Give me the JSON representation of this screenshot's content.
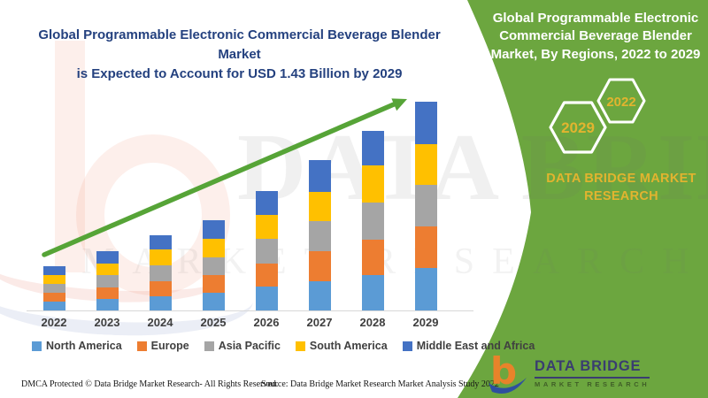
{
  "header": {
    "title_line1": "Global Programmable Electronic Commercial Beverage Blender Market",
    "title_line2": "is Expected to Account for USD 1.43 Billion by 2029"
  },
  "side_panel": {
    "title": "Global Programmable Electronic Commercial Beverage Blender Market, By Regions, 2022 to 2029",
    "hexagon_labels": [
      "2029",
      "2022"
    ],
    "brand_text": "DATA BRIDGE MARKET RESEARCH"
  },
  "logo": {
    "title": "DATA BRIDGE",
    "subtitle": "MARKET RESEARCH"
  },
  "footer": {
    "dmca": "DMCA Protected © Data Bridge Market Research- All Rights Reserved.",
    "source": "Source: Data Bridge Market Research Market Analysis Study 2022"
  },
  "colors": {
    "panel_green": "#6CA63F",
    "arrow_green": "#56A437",
    "gold": "#E2B42F",
    "title_blue": "#24417F",
    "logo_navy": "#3A3D70",
    "logo_orange": "#E8832A",
    "logo_blue": "#2E4F9F"
  },
  "chart_data": {
    "type": "bar",
    "stacked": true,
    "title": "Global Programmable Electronic Commercial Beverage Blender Market, By Regions, 2022 to 2029",
    "xlabel": "",
    "ylabel": "",
    "value_axis": "none shown; values are estimated bar-segment heights in screen pixels (relative units)",
    "annotation_total_2029_usd_billion": 1.43,
    "grid": false,
    "legend_position": "bottom",
    "trend_arrow": true,
    "categories": [
      "2022",
      "2023",
      "2024",
      "2025",
      "2026",
      "2027",
      "2028",
      "2029"
    ],
    "series": [
      {
        "name": "North America",
        "color": "#5B9BD5",
        "values": [
          10,
          13,
          16,
          20,
          27,
          33,
          40,
          48
        ]
      },
      {
        "name": "Europe",
        "color": "#ED7D31",
        "values": [
          10,
          13,
          17,
          20,
          26,
          34,
          40,
          47
        ]
      },
      {
        "name": "Asia Pacific",
        "color": "#A5A5A5",
        "values": [
          10,
          14,
          18,
          20,
          28,
          34,
          42,
          47
        ]
      },
      {
        "name": "South America",
        "color": "#FFC000",
        "values": [
          10,
          13,
          18,
          21,
          27,
          33,
          42,
          46
        ]
      },
      {
        "name": "Middle East and Africa",
        "color": "#4472C4",
        "values": [
          10,
          14,
          16,
          21,
          27,
          36,
          39,
          48
        ]
      }
    ],
    "stack_totals": [
      50,
      67,
      85,
      102,
      135,
      170,
      203,
      236
    ]
  }
}
